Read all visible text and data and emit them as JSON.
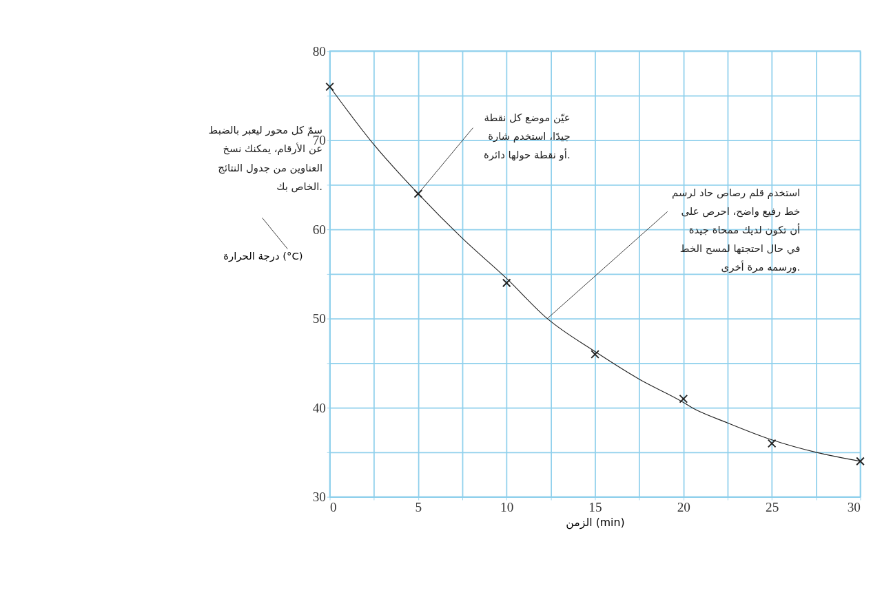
{
  "chart_data": {
    "type": "scatter",
    "xlabel": "الزمن (min)",
    "ylabel": "درجة الحرارة (°C)",
    "series": [
      {
        "color": "#222222",
        "marker": "cross",
        "x": [
          0,
          5,
          10,
          15,
          20,
          25,
          30
        ],
        "values": [
          76,
          64,
          54,
          46,
          41,
          36,
          34
        ]
      },
      {
        "type": "line",
        "color": "#222222",
        "line_style": "solid",
        "x": [
          0,
          2.5,
          5,
          7.5,
          10,
          12.3,
          15,
          17.5,
          20,
          20.5,
          22.5,
          25,
          27.5,
          30
        ],
        "values": [
          76,
          69.5,
          64,
          59,
          54.5,
          50,
          46.3,
          43.2,
          40.6,
          40,
          38.3,
          36.4,
          35,
          34
        ]
      }
    ],
    "xlim": [
      0,
      30
    ],
    "xticks": [
      0,
      {
        "value": 2.5,
        "label": null
      },
      5,
      {
        "value": 7.5,
        "label": null
      },
      10,
      {
        "value": 12.5,
        "label": null
      },
      15,
      {
        "value": 17.5,
        "label": null
      },
      20,
      {
        "value": 22.5,
        "label": null
      },
      25,
      {
        "value": 27.5,
        "label": null
      },
      30
    ],
    "ylim": [
      30,
      80
    ],
    "yticks": [
      30,
      {
        "value": 35,
        "label": null
      },
      40,
      {
        "value": 45,
        "label": null
      },
      50,
      {
        "value": 55,
        "label": null
      },
      60,
      {
        "value": 65,
        "label": null
      },
      70,
      {
        "value": 75,
        "label": null
      },
      80
    ],
    "grid": true,
    "annotations": [
      "سمّ كل محور ليعبر بالضبط\nعن الأرقام، يمكنك نسخ\nالعناوين من جدول النتائج\nالخاص بك.",
      {
        "text": "عيّن موضع كل نقطة\nجيدًا، استخدم شارة\nأو نقطة حولها دائرة.",
        "x": 5,
        "y": 64
      },
      {
        "text": "استخدم قلم رصاص حاد لرسم\nخط رفيع واضح، احرص على\nأن تكون لديك ممحاة جيدة\nفي حال احتجتها لمسح الخط\nورسمه مرة أخرى.",
        "x": 12.3,
        "y": 50
      }
    ]
  }
}
